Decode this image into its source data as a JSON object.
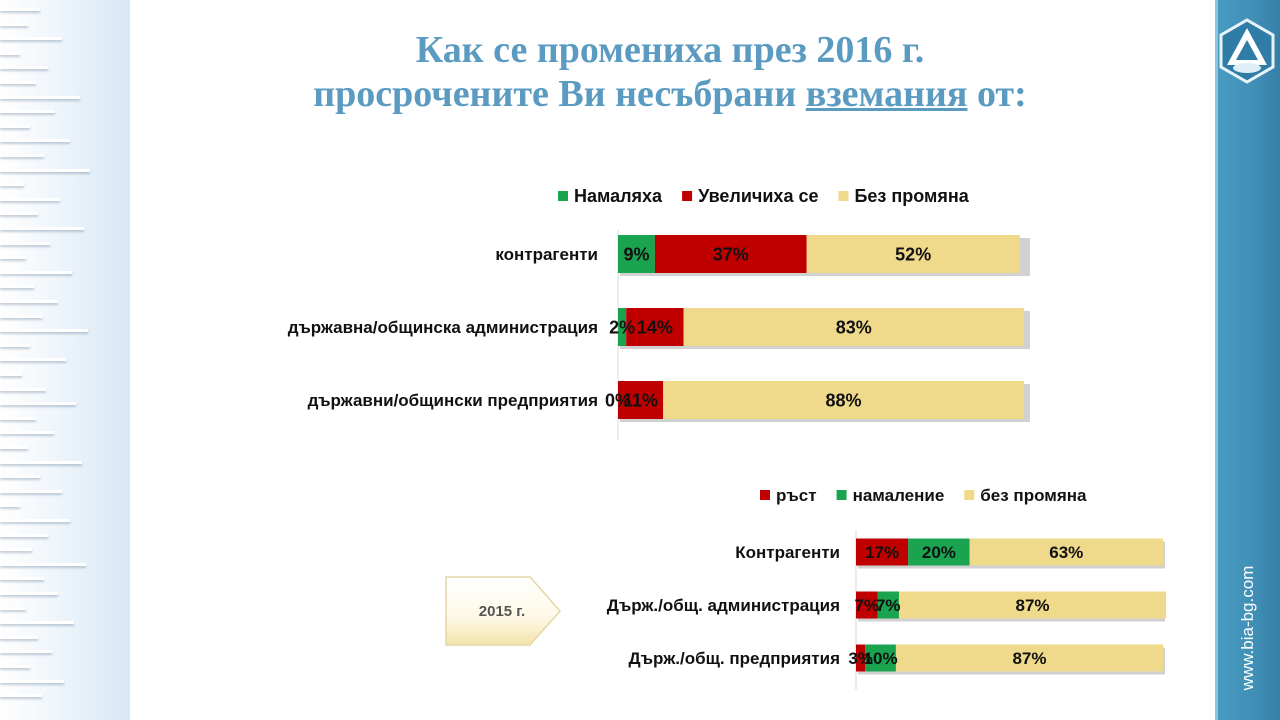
{
  "title": {
    "line1": "Как се промениха през 2016 г.",
    "line2_pre": "просрочените Ви несъбрани ",
    "line2_underlined": "вземания",
    "line2_post": " от:"
  },
  "website": "www.bia-bg.com",
  "year_badge": "2015 г.",
  "colors": {
    "green": "#1aa44f",
    "red": "#c00000",
    "beige": "#efd98a",
    "title": "#5b9bc1",
    "strip": "#3f8fb7"
  },
  "chart_data": [
    {
      "type": "bar",
      "orientation": "horizontal",
      "stacked": true,
      "categories": [
        "контрагенти",
        "държавна/общинска администрация",
        "държавни/общински предприятия"
      ],
      "series": [
        {
          "name": "Намаляха",
          "values": [
            9,
            2,
            0
          ],
          "labels": [
            "9%",
            "2%",
            "0%"
          ],
          "color": "#1aa44f"
        },
        {
          "name": "Увеличиха се",
          "values": [
            37,
            14,
            11
          ],
          "labels": [
            "37%",
            "14%",
            "11%"
          ],
          "color": "#c00000"
        },
        {
          "name": "Без промяна",
          "values": [
            52,
            83,
            88
          ],
          "labels": [
            "52%",
            "83%",
            "88%"
          ],
          "color": "#efd98a"
        }
      ],
      "legend_position": "top"
    },
    {
      "type": "bar",
      "orientation": "horizontal",
      "stacked": true,
      "categories": [
        "Контрагенти",
        "Държ./общ. администрация",
        "Държ./общ. предприятия"
      ],
      "series": [
        {
          "name": "ръст",
          "values": [
            17,
            7,
            3
          ],
          "labels": [
            "17%",
            "7%",
            "3%"
          ],
          "color": "#c00000"
        },
        {
          "name": "намаление",
          "values": [
            20,
            7,
            10
          ],
          "labels": [
            "20%",
            "7%",
            "10%"
          ],
          "color": "#1aa44f"
        },
        {
          "name": "без промяна",
          "values": [
            63,
            87,
            87
          ],
          "labels": [
            "63%",
            "87%",
            "87%"
          ],
          "color": "#efd98a"
        }
      ],
      "legend_position": "top"
    }
  ]
}
